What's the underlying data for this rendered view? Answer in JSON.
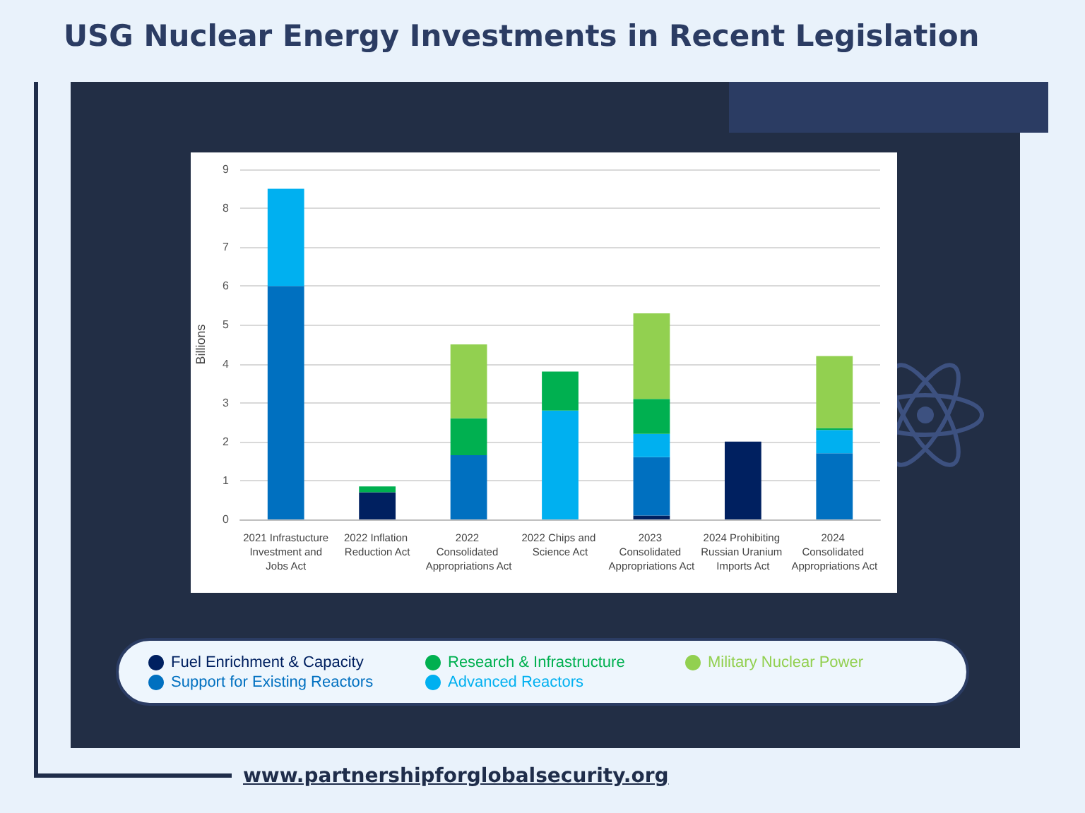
{
  "chart_data": {
    "type": "bar",
    "title": "USG Nuclear Energy Investments in Recent Legislation",
    "ylabel": "Billions",
    "categories": [
      "2021 Infrastucture Investment and Jobs Act",
      "2022 Inflation Reduction Act",
      "2022 Consolidated Appropriations Act",
      "2022 Chips and Science Act",
      "2023 Consolidated Appropriations Act",
      "2024 Prohibiting Russian Uranium Imports Act",
      "2024 Consolidated Appropriations Act"
    ],
    "stacked": true,
    "series": [
      {
        "name": "Fuel Enrichment & Capacity",
        "color": "#002060",
        "values": [
          null,
          0.7,
          null,
          null,
          0.1,
          2.0,
          null
        ]
      },
      {
        "name": "Support for Existing Reactors",
        "color": "#0070c0",
        "values": [
          6.0,
          null,
          1.65,
          null,
          1.5,
          null,
          1.7
        ]
      },
      {
        "name": "Advanced Reactors",
        "color": "#00b0f0",
        "values": [
          2.5,
          null,
          null,
          2.8,
          0.6,
          null,
          0.6
        ]
      },
      {
        "name": "Research & Infrastructure",
        "color": "#00b050",
        "values": [
          null,
          0.15,
          0.95,
          1.0,
          0.9,
          null,
          0.05
        ]
      },
      {
        "name": "Military Nuclear Power",
        "color": "#92d050",
        "values": [
          null,
          null,
          1.9,
          null,
          2.2,
          null,
          1.85
        ]
      }
    ],
    "ylim": [
      0,
      9
    ],
    "yticks": [
      0,
      1,
      2,
      3,
      4,
      5,
      6,
      7,
      8,
      9
    ],
    "grid": "y",
    "legend": "bottom",
    "annotations": [
      "www.partnershipforglobalsecurity.org"
    ]
  }
}
